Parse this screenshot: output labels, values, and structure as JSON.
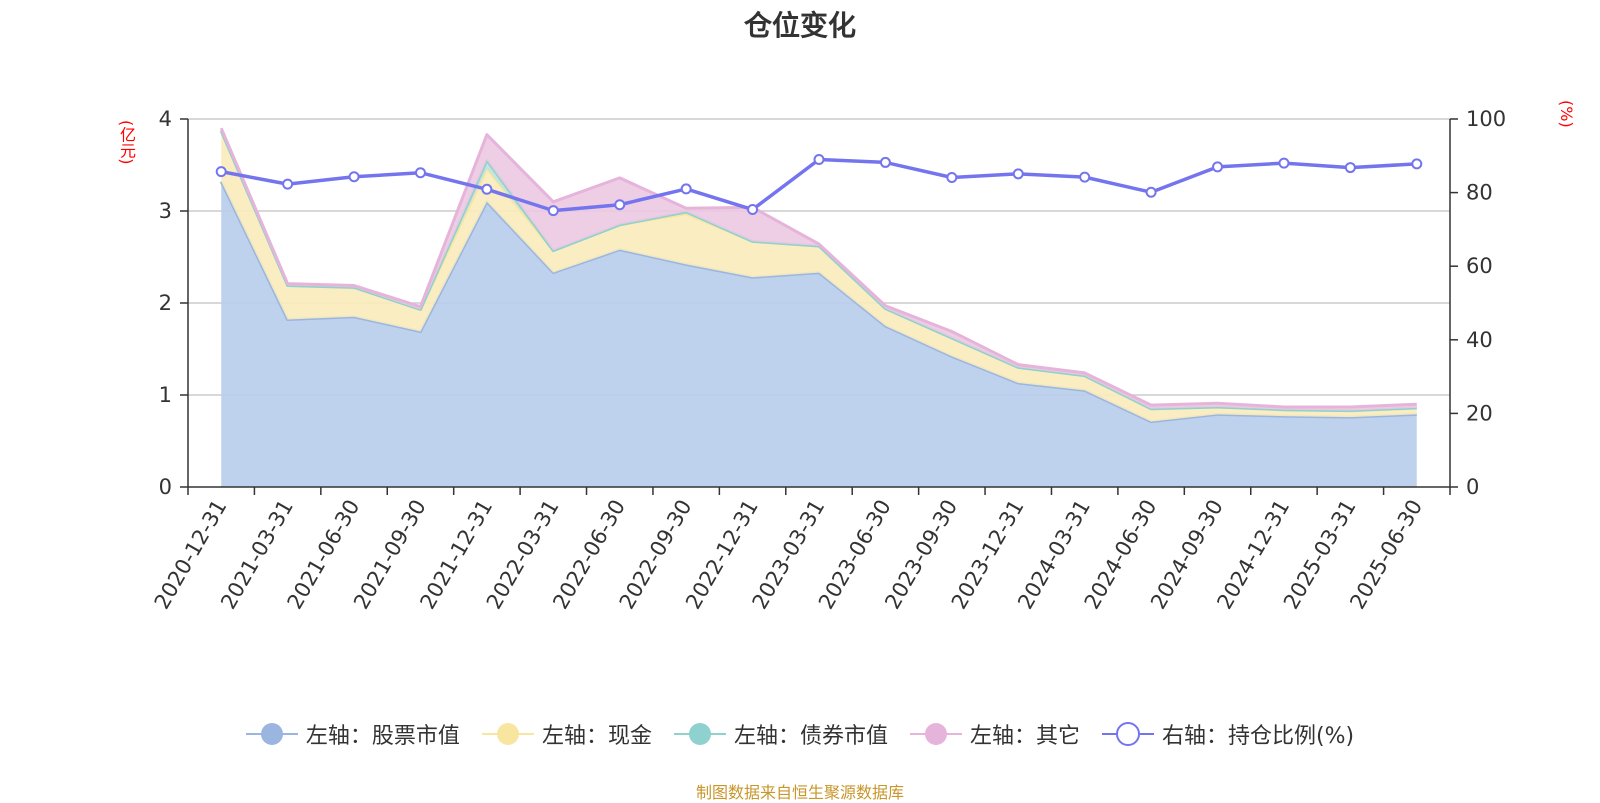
{
  "chart_data": {
    "type": "area",
    "title": "仓位变化",
    "left_axis_unit": "(亿元)",
    "right_axis_unit": "(%)",
    "categories": [
      "2020-12-31",
      "2021-03-31",
      "2021-06-30",
      "2021-09-30",
      "2021-12-31",
      "2022-03-31",
      "2022-06-30",
      "2022-09-30",
      "2022-12-31",
      "2023-03-31",
      "2023-06-30",
      "2023-09-30",
      "2023-12-31",
      "2024-03-31",
      "2024-06-30",
      "2024-09-30",
      "2024-12-31",
      "2025-03-31",
      "2025-06-30"
    ],
    "left_ylim": [
      0,
      4
    ],
    "left_yticks": [
      0,
      1,
      2,
      3,
      4
    ],
    "right_ylim": [
      0,
      100
    ],
    "right_yticks": [
      0,
      20,
      40,
      60,
      80,
      100
    ],
    "grid": true,
    "legend_position": "bottom",
    "series": [
      {
        "name": "左轴：股票市值",
        "axis": "left",
        "stacked": true,
        "color": "#9ab6e0",
        "fill": "#b8cdeb",
        "values": [
          3.32,
          1.82,
          1.85,
          1.69,
          3.1,
          2.33,
          2.58,
          2.42,
          2.28,
          2.33,
          1.75,
          1.42,
          1.13,
          1.05,
          0.71,
          0.79,
          0.77,
          0.76,
          0.79
        ]
      },
      {
        "name": "左轴：现金",
        "axis": "left",
        "stacked": true,
        "color": "#f8e6a0",
        "fill": "#f9ebbb",
        "values": [
          0.55,
          0.37,
          0.32,
          0.24,
          0.36,
          0.24,
          0.27,
          0.55,
          0.39,
          0.29,
          0.19,
          0.2,
          0.17,
          0.16,
          0.14,
          0.08,
          0.07,
          0.07,
          0.07
        ]
      },
      {
        "name": "左轴：债券市值",
        "axis": "left",
        "stacked": true,
        "color": "#8fd1ce",
        "fill": "#bde3e0",
        "values": [
          0,
          0,
          0,
          0,
          0.09,
          0,
          0,
          0.02,
          0,
          0,
          0,
          0,
          0,
          0,
          0,
          0,
          0,
          0,
          0
        ]
      },
      {
        "name": "左轴：其它",
        "axis": "left",
        "stacked": true,
        "color": "#e6b4da",
        "fill": "#ecc9e1",
        "values": [
          0.03,
          0.02,
          0.02,
          0.03,
          0.28,
          0.53,
          0.51,
          0.04,
          0.37,
          0.02,
          0.03,
          0.07,
          0.03,
          0.03,
          0.04,
          0.04,
          0.03,
          0.04,
          0.04
        ]
      },
      {
        "name": "右轴：持仓比例(%)",
        "axis": "right",
        "type": "line",
        "color": "#7475ee",
        "values": [
          85.7,
          82.3,
          84.3,
          85.4,
          80.9,
          75.1,
          76.7,
          81.0,
          75.4,
          89.0,
          88.2,
          84.1,
          85.1,
          84.2,
          80.1,
          87.0,
          88.0,
          86.8,
          87.8
        ]
      }
    ]
  },
  "footer": {
    "source": "制图数据来自恒生聚源数据库"
  }
}
